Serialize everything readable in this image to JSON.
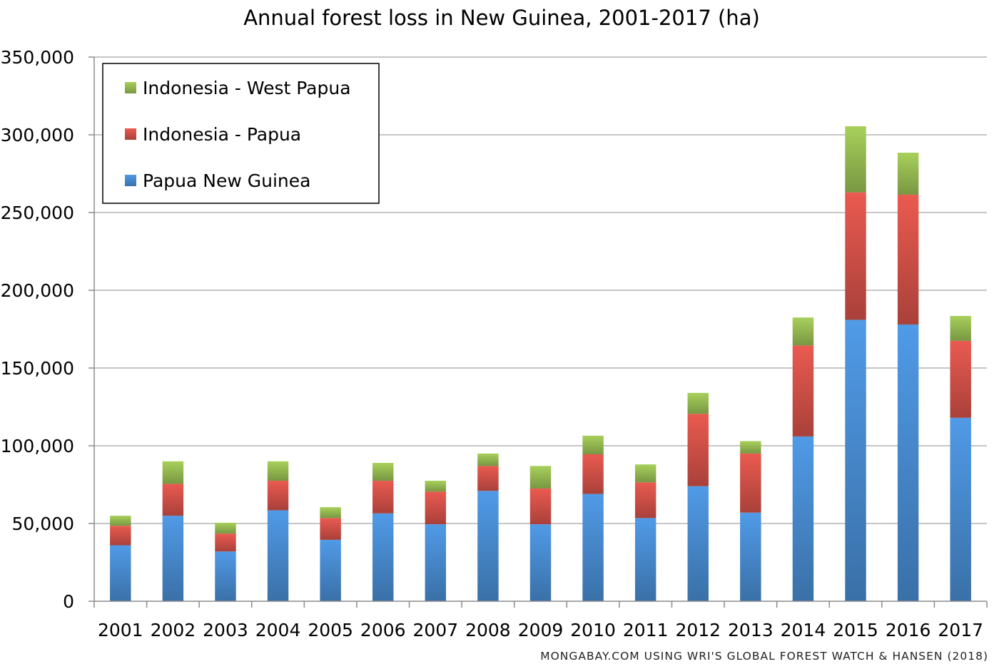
{
  "chart_data": {
    "type": "bar",
    "stacked": true,
    "title": "Annual forest loss in New Guinea, 2001-2017 (ha)",
    "credit": "MONGABAY.COM USING WRI'S GLOBAL FOREST WATCH & HANSEN (2018)",
    "xlabel": "",
    "ylabel": "",
    "ylim": [
      0,
      350000
    ],
    "yticks": [
      0,
      50000,
      100000,
      150000,
      200000,
      250000,
      300000,
      350000
    ],
    "ytick_labels": [
      "0",
      "50,000",
      "100,000",
      "150,000",
      "200,000",
      "250,000",
      "300,000",
      "350,000"
    ],
    "grid": true,
    "legend_position": "top-left",
    "categories": [
      "2001",
      "2002",
      "2003",
      "2004",
      "2005",
      "2006",
      "2007",
      "2008",
      "2009",
      "2010",
      "2011",
      "2012",
      "2013",
      "2014",
      "2015",
      "2016",
      "2017"
    ],
    "series": [
      {
        "name": "Papua New Guinea",
        "color": "#4a8fd6",
        "values": [
          36000,
          55000,
          32000,
          58500,
          39500,
          56500,
          49500,
          71000,
          49500,
          69000,
          53500,
          74000,
          57000,
          106000,
          181000,
          178000,
          118000
        ]
      },
      {
        "name": "Indonesia - Papua",
        "color": "#d9534a",
        "values": [
          12500,
          20500,
          11500,
          19000,
          14000,
          21000,
          21000,
          16000,
          23000,
          25500,
          23000,
          46500,
          38000,
          58500,
          82000,
          83500,
          49500
        ]
      },
      {
        "name": "Indonesia - West Papua",
        "color": "#9bc154",
        "values": [
          6500,
          14500,
          7000,
          12500,
          7000,
          11500,
          7000,
          8000,
          14500,
          12000,
          11500,
          13500,
          8000,
          18000,
          42500,
          27000,
          16000
        ]
      }
    ],
    "legend_order": [
      "Indonesia - West Papua",
      "Indonesia - Papua",
      "Papua New Guinea"
    ]
  }
}
